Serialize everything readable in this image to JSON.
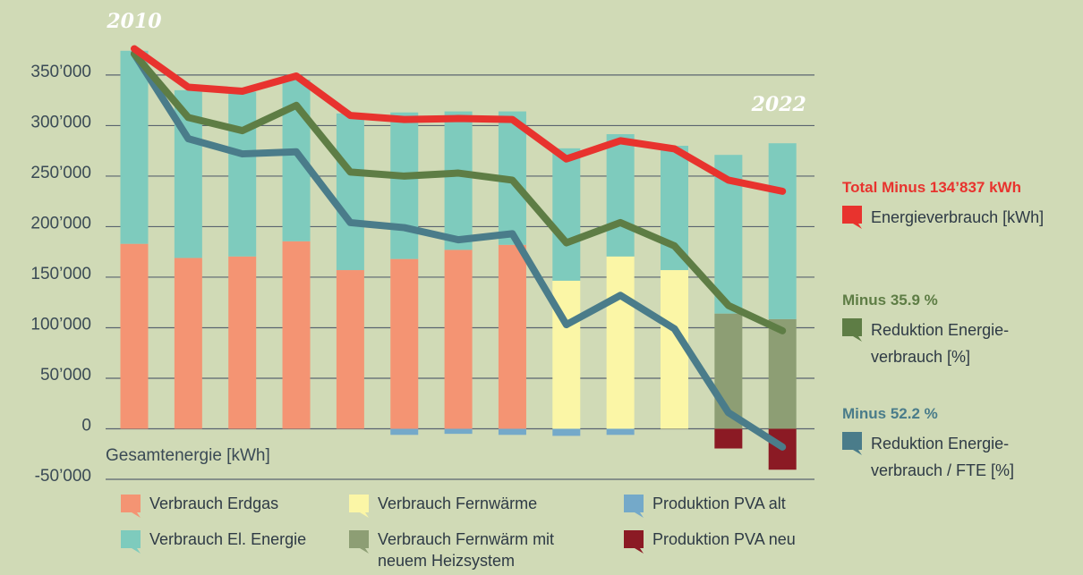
{
  "chart_data": {
    "type": "bar",
    "categories": [
      "2010",
      null,
      null,
      null,
      null,
      null,
      null,
      null,
      null,
      null,
      null,
      null,
      "2022"
    ],
    "y_label": "Gesamtenergie [kWh]",
    "ylim": [
      -50000,
      380000
    ],
    "yticks": [
      {
        "value": -50000,
        "label": "-50’000"
      },
      {
        "value": 0,
        "label": "0"
      },
      {
        "value": 50000,
        "label": "50’000"
      },
      {
        "value": 100000,
        "label": "100’000"
      },
      {
        "value": 150000,
        "label": "150’000"
      },
      {
        "value": 200000,
        "label": "200’000"
      },
      {
        "value": 250000,
        "label": "250’000"
      },
      {
        "value": 300000,
        "label": "300’000"
      },
      {
        "value": 350000,
        "label": "350’000"
      }
    ],
    "grid": true,
    "series": [
      {
        "name": "Verbrauch Erdgas",
        "type": "bar",
        "color": "#f49473",
        "values": [
          183000,
          169000,
          170500,
          185500,
          157000,
          168000,
          177000,
          182000,
          null,
          null,
          null,
          null,
          null
        ]
      },
      {
        "name": "Verbrauch Fernwärme",
        "type": "bar",
        "color": "#fbf6a6",
        "values": [
          null,
          null,
          null,
          null,
          null,
          null,
          null,
          null,
          146500,
          170500,
          157000,
          null,
          null
        ]
      },
      {
        "name": "Verbrauch Fernwärm mit neuem Heizsystem",
        "type": "bar",
        "color": "#8d9e74",
        "values": [
          null,
          null,
          null,
          null,
          null,
          null,
          null,
          null,
          null,
          null,
          null,
          114000,
          108500
        ]
      },
      {
        "name": "Verbrauch El. Energie",
        "type": "bar",
        "color": "#7ecbbd",
        "values": [
          191000,
          166000,
          163000,
          160000,
          155000,
          145000,
          137000,
          132000,
          131000,
          121000,
          123000,
          157000,
          174000
        ]
      },
      {
        "name": "Produktion PVA alt",
        "type": "bar",
        "color": "#74a9c9",
        "values": [
          null,
          null,
          null,
          null,
          null,
          -6000,
          -5000,
          -6000,
          -7000,
          -6000,
          null,
          null,
          null
        ]
      },
      {
        "name": "Produktion PVA neu",
        "type": "bar",
        "color": "#8b1a24",
        "values": [
          null,
          null,
          null,
          null,
          null,
          null,
          null,
          null,
          null,
          null,
          null,
          -19500,
          -40500
        ]
      },
      {
        "name": "Energieverbrauch [kWh]",
        "summary": "Total Minus 134’837 kWh",
        "type": "line",
        "color": "#e8332e",
        "values": [
          376000,
          338000,
          334000,
          349000,
          310000,
          306000,
          307000,
          306000,
          267000,
          285000,
          277000,
          246000,
          235000
        ]
      },
      {
        "name": "Reduktion Energie- verbrauch [%]",
        "summary": "Minus 35.9 %",
        "type": "line",
        "color": "#5e7d45",
        "values": [
          371000,
          308000,
          295000,
          320000,
          254000,
          250000,
          253000,
          246000,
          184000,
          204000,
          181000,
          122000,
          97000
        ]
      },
      {
        "name": "Reduktion Energie- verbrauch / FTE [%]",
        "summary": "Minus 52.2 %",
        "type": "line",
        "color": "#4a7c8a",
        "values": [
          371000,
          287000,
          272000,
          274000,
          204000,
          199000,
          187000,
          193000,
          103000,
          132000,
          99000,
          16000,
          -18000
        ]
      }
    ]
  }
}
